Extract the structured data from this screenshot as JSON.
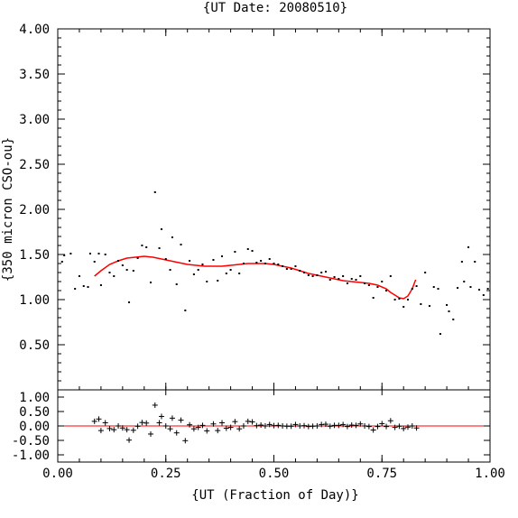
{
  "chart_data": [
    {
      "type": "scatter",
      "title": "{UT Date: 20080510}",
      "ylabel": "{350 micron CSO-ou}",
      "xlim": [
        0,
        1
      ],
      "ylim": [
        0,
        4
      ],
      "y_ticks": [
        "0.50",
        "1.00",
        "1.50",
        "2.00",
        "2.50",
        "3.00",
        "3.50",
        "4.00"
      ],
      "series": [
        {
          "kind": "points",
          "color": "#000000",
          "points": [
            [
              0.01,
              1.42
            ],
            [
              0.015,
              1.49
            ],
            [
              0.03,
              1.51
            ],
            [
              0.04,
              1.12
            ],
            [
              0.05,
              1.26
            ],
            [
              0.06,
              1.15
            ],
            [
              0.07,
              1.14
            ],
            [
              0.075,
              1.51
            ],
            [
              0.085,
              1.42
            ],
            [
              0.095,
              1.51
            ],
            [
              0.1,
              1.16
            ],
            [
              0.11,
              1.5
            ],
            [
              0.12,
              1.3
            ],
            [
              0.13,
              1.26
            ],
            [
              0.14,
              1.43
            ],
            [
              0.15,
              1.38
            ],
            [
              0.16,
              1.33
            ],
            [
              0.165,
              0.97
            ],
            [
              0.175,
              1.32
            ],
            [
              0.185,
              1.46
            ],
            [
              0.195,
              1.6
            ],
            [
              0.205,
              1.58
            ],
            [
              0.215,
              1.19
            ],
            [
              0.225,
              2.19
            ],
            [
              0.235,
              1.57
            ],
            [
              0.24,
              1.78
            ],
            [
              0.25,
              1.45
            ],
            [
              0.26,
              1.33
            ],
            [
              0.265,
              1.69
            ],
            [
              0.275,
              1.17
            ],
            [
              0.285,
              1.61
            ],
            [
              0.295,
              0.88
            ],
            [
              0.305,
              1.43
            ],
            [
              0.315,
              1.28
            ],
            [
              0.325,
              1.33
            ],
            [
              0.335,
              1.39
            ],
            [
              0.345,
              1.2
            ],
            [
              0.36,
              1.44
            ],
            [
              0.37,
              1.21
            ],
            [
              0.38,
              1.48
            ],
            [
              0.39,
              1.29
            ],
            [
              0.4,
              1.33
            ],
            [
              0.41,
              1.53
            ],
            [
              0.42,
              1.29
            ],
            [
              0.43,
              1.4
            ],
            [
              0.44,
              1.56
            ],
            [
              0.45,
              1.54
            ],
            [
              0.46,
              1.41
            ],
            [
              0.47,
              1.43
            ],
            [
              0.48,
              1.4
            ],
            [
              0.49,
              1.45
            ],
            [
              0.5,
              1.4
            ],
            [
              0.51,
              1.39
            ],
            [
              0.52,
              1.37
            ],
            [
              0.53,
              1.34
            ],
            [
              0.54,
              1.34
            ],
            [
              0.55,
              1.37
            ],
            [
              0.56,
              1.32
            ],
            [
              0.57,
              1.3
            ],
            [
              0.58,
              1.27
            ],
            [
              0.59,
              1.26
            ],
            [
              0.6,
              1.27
            ],
            [
              0.61,
              1.3
            ],
            [
              0.62,
              1.31
            ],
            [
              0.63,
              1.22
            ],
            [
              0.64,
              1.25
            ],
            [
              0.65,
              1.23
            ],
            [
              0.66,
              1.26
            ],
            [
              0.67,
              1.18
            ],
            [
              0.68,
              1.23
            ],
            [
              0.69,
              1.22
            ],
            [
              0.7,
              1.26
            ],
            [
              0.71,
              1.18
            ],
            [
              0.72,
              1.16
            ],
            [
              0.73,
              1.02
            ],
            [
              0.74,
              1.14
            ],
            [
              0.75,
              1.2
            ],
            [
              0.76,
              1.1
            ],
            [
              0.77,
              1.26
            ],
            [
              0.78,
              1.0
            ],
            [
              0.79,
              1.01
            ],
            [
              0.8,
              0.92
            ],
            [
              0.81,
              1.0
            ],
            [
              0.82,
              1.12
            ],
            [
              0.83,
              1.15
            ],
            [
              0.84,
              0.95
            ],
            [
              0.85,
              1.3
            ],
            [
              0.86,
              0.93
            ],
            [
              0.87,
              1.14
            ],
            [
              0.88,
              1.12
            ],
            [
              0.885,
              0.62
            ],
            [
              0.9,
              0.94
            ],
            [
              0.905,
              0.87
            ],
            [
              0.915,
              0.78
            ],
            [
              0.925,
              1.13
            ],
            [
              0.935,
              1.42
            ],
            [
              0.94,
              1.2
            ],
            [
              0.95,
              1.58
            ],
            [
              0.955,
              1.14
            ],
            [
              0.965,
              1.42
            ],
            [
              0.975,
              1.11
            ],
            [
              0.985,
              1.05
            ],
            [
              0.995,
              1.12
            ]
          ]
        },
        {
          "kind": "fit-curve",
          "color": "#ff0000",
          "points": [
            [
              0.085,
              1.26
            ],
            [
              0.1,
              1.32
            ],
            [
              0.12,
              1.39
            ],
            [
              0.14,
              1.43
            ],
            [
              0.16,
              1.46
            ],
            [
              0.18,
              1.47
            ],
            [
              0.2,
              1.48
            ],
            [
              0.22,
              1.47
            ],
            [
              0.24,
              1.45
            ],
            [
              0.26,
              1.43
            ],
            [
              0.28,
              1.41
            ],
            [
              0.3,
              1.39
            ],
            [
              0.32,
              1.38
            ],
            [
              0.34,
              1.37
            ],
            [
              0.36,
              1.37
            ],
            [
              0.38,
              1.37
            ],
            [
              0.4,
              1.38
            ],
            [
              0.42,
              1.39
            ],
            [
              0.44,
              1.4
            ],
            [
              0.46,
              1.4
            ],
            [
              0.48,
              1.4
            ],
            [
              0.5,
              1.39
            ],
            [
              0.52,
              1.37
            ],
            [
              0.54,
              1.35
            ],
            [
              0.56,
              1.32
            ],
            [
              0.58,
              1.29
            ],
            [
              0.6,
              1.27
            ],
            [
              0.62,
              1.25
            ],
            [
              0.64,
              1.23
            ],
            [
              0.66,
              1.21
            ],
            [
              0.68,
              1.2
            ],
            [
              0.7,
              1.19
            ],
            [
              0.72,
              1.18
            ],
            [
              0.74,
              1.16
            ],
            [
              0.76,
              1.12
            ],
            [
              0.77,
              1.08
            ],
            [
              0.78,
              1.05
            ],
            [
              0.79,
              1.02
            ],
            [
              0.8,
              1.01
            ],
            [
              0.81,
              1.04
            ],
            [
              0.82,
              1.12
            ],
            [
              0.828,
              1.22
            ]
          ]
        }
      ]
    },
    {
      "type": "scatter",
      "xlabel": "{UT (Fraction of Day)}",
      "xlim": [
        0,
        1
      ],
      "ylim": [
        -1.25,
        1.25
      ],
      "x_ticks": [
        "0.00",
        "0.25",
        "0.50",
        "0.75",
        "1.00"
      ],
      "y_ticks": [
        "-1.00",
        "-0.50",
        "0.00",
        "0.50",
        "1.00"
      ],
      "series": [
        {
          "kind": "residual-points",
          "color": "#000000",
          "points": [
            [
              0.085,
              0.16
            ],
            [
              0.095,
              0.24
            ],
            [
              0.1,
              -0.16
            ],
            [
              0.11,
              0.11
            ],
            [
              0.12,
              -0.09
            ],
            [
              0.13,
              -0.13
            ],
            [
              0.14,
              0.0
            ],
            [
              0.15,
              -0.07
            ],
            [
              0.16,
              -0.13
            ],
            [
              0.165,
              -0.49
            ],
            [
              0.175,
              -0.15
            ],
            [
              0.185,
              -0.01
            ],
            [
              0.195,
              0.12
            ],
            [
              0.205,
              0.1
            ],
            [
              0.215,
              -0.28
            ],
            [
              0.225,
              0.72
            ],
            [
              0.235,
              0.11
            ],
            [
              0.24,
              0.33
            ],
            [
              0.25,
              0.0
            ],
            [
              0.26,
              -0.1
            ],
            [
              0.265,
              0.27
            ],
            [
              0.275,
              -0.24
            ],
            [
              0.285,
              0.2
            ],
            [
              0.295,
              -0.51
            ],
            [
              0.305,
              0.04
            ],
            [
              0.315,
              -0.1
            ],
            [
              0.325,
              -0.05
            ],
            [
              0.335,
              0.02
            ],
            [
              0.345,
              -0.17
            ],
            [
              0.36,
              0.07
            ],
            [
              0.37,
              -0.16
            ],
            [
              0.38,
              0.11
            ],
            [
              0.39,
              -0.08
            ],
            [
              0.4,
              -0.05
            ],
            [
              0.41,
              0.15
            ],
            [
              0.42,
              -0.1
            ],
            [
              0.43,
              0.0
            ],
            [
              0.44,
              0.16
            ],
            [
              0.45,
              0.14
            ],
            [
              0.46,
              0.01
            ],
            [
              0.47,
              0.03
            ],
            [
              0.48,
              0.0
            ],
            [
              0.49,
              0.05
            ],
            [
              0.5,
              0.01
            ],
            [
              0.51,
              0.02
            ],
            [
              0.52,
              0.0
            ],
            [
              0.53,
              -0.01
            ],
            [
              0.54,
              -0.01
            ],
            [
              0.55,
              0.05
            ],
            [
              0.56,
              0.0
            ],
            [
              0.57,
              0.01
            ],
            [
              0.58,
              -0.02
            ],
            [
              0.59,
              -0.01
            ],
            [
              0.6,
              0.0
            ],
            [
              0.61,
              0.05
            ],
            [
              0.62,
              0.06
            ],
            [
              0.63,
              -0.01
            ],
            [
              0.64,
              0.02
            ],
            [
              0.65,
              0.02
            ],
            [
              0.66,
              0.05
            ],
            [
              0.67,
              -0.02
            ],
            [
              0.68,
              0.03
            ],
            [
              0.69,
              0.02
            ],
            [
              0.7,
              0.07
            ],
            [
              0.71,
              0.0
            ],
            [
              0.72,
              -0.02
            ],
            [
              0.73,
              -0.14
            ],
            [
              0.74,
              -0.02
            ],
            [
              0.75,
              0.08
            ],
            [
              0.76,
              -0.02
            ],
            [
              0.77,
              0.18
            ],
            [
              0.78,
              -0.05
            ],
            [
              0.79,
              -0.01
            ],
            [
              0.8,
              -0.09
            ],
            [
              0.81,
              -0.04
            ],
            [
              0.82,
              0.0
            ],
            [
              0.83,
              -0.07
            ]
          ]
        },
        {
          "kind": "zero-line",
          "color": "#ff0000",
          "y": 0
        }
      ]
    }
  ]
}
